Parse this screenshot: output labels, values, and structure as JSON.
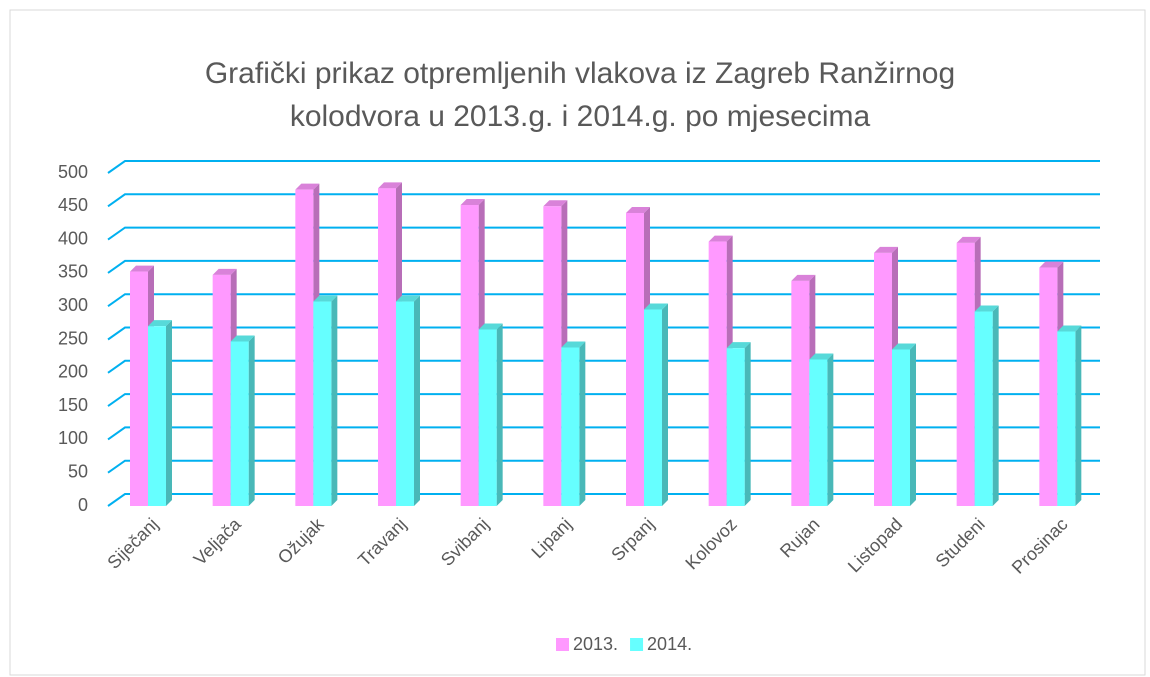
{
  "chart_data": {
    "type": "bar3d",
    "title": [
      "Grafički prikaz otpremljenih vlakova iz Zagreb Ranžirnog",
      "kolodvora u 2013.g. i 2014.g. po mjesecima"
    ],
    "categories": [
      "Siječanj",
      "Veljača",
      "Ožujak",
      "Travanj",
      "Svibanj",
      "Lipanj",
      "Srpanj",
      "Kolovoz",
      "Rujan",
      "Listopad",
      "Studeni",
      "Prosinac"
    ],
    "series": [
      {
        "name": "2013.",
        "color": "#ff99ff",
        "values": [
          352,
          347,
          475,
          477,
          452,
          450,
          440,
          397,
          338,
          380,
          395,
          358
        ]
      },
      {
        "name": "2014.",
        "color": "#66ffff",
        "values": [
          270,
          247,
          307,
          307,
          265,
          238,
          295,
          237,
          220,
          235,
          292,
          262
        ]
      }
    ],
    "ylim": [
      0,
      500
    ],
    "yticks": [
      0,
      50,
      100,
      150,
      200,
      250,
      300,
      350,
      400,
      450,
      500
    ],
    "grid": true,
    "grid_color": "#00b0f0",
    "legend": "bottom"
  }
}
